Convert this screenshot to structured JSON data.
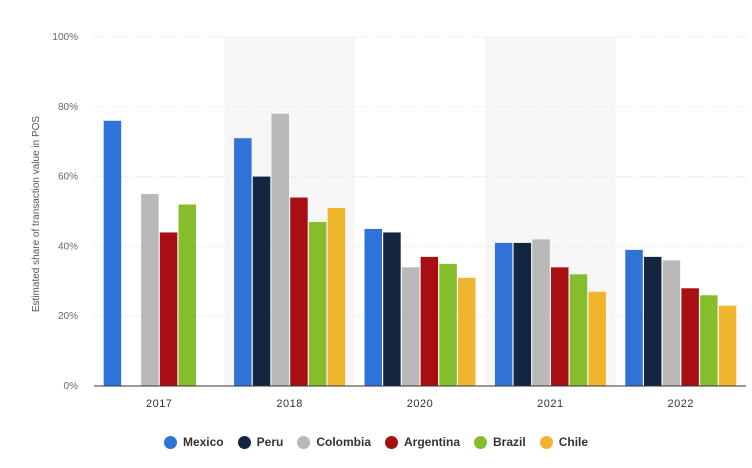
{
  "chart_data": {
    "type": "bar",
    "title": "",
    "xlabel": "",
    "ylabel": "Estimated share of transaction value in POS",
    "categories": [
      "2017",
      "2018",
      "2020",
      "2021",
      "2022"
    ],
    "ylim": [
      0,
      100
    ],
    "yticks": [
      "0%",
      "20%",
      "40%",
      "60%",
      "80%",
      "100%"
    ],
    "grid": true,
    "legend_position": "bottom",
    "series": [
      {
        "name": "Mexico",
        "color": "#2f73d8",
        "values": [
          76,
          71,
          45,
          41,
          39
        ]
      },
      {
        "name": "Peru",
        "color": "#14253f",
        "values": [
          null,
          60,
          44,
          41,
          37
        ]
      },
      {
        "name": "Colombia",
        "color": "#b8b8b8",
        "values": [
          55,
          78,
          34,
          42,
          36
        ]
      },
      {
        "name": "Argentina",
        "color": "#a80f12",
        "values": [
          44,
          54,
          37,
          34,
          28
        ]
      },
      {
        "name": "Brazil",
        "color": "#85bd2c",
        "values": [
          52,
          47,
          35,
          32,
          26
        ]
      },
      {
        "name": "Chile",
        "color": "#efb52e",
        "values": [
          null,
          51,
          31,
          27,
          23
        ]
      }
    ]
  }
}
